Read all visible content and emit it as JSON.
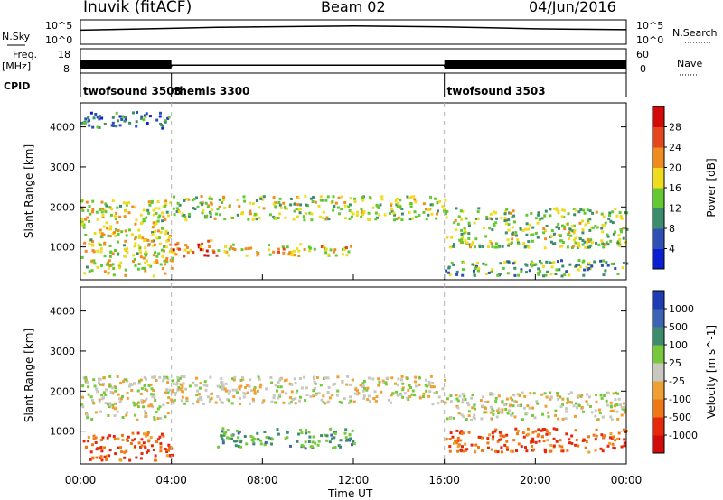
{
  "header": {
    "station": "Inuvik (fitACF)",
    "beam": "Beam 02",
    "date": "04/Jun/2016"
  },
  "side_labels": {
    "nsky": "N.Sky",
    "freq": "Freq.",
    "freq_unit": "[MHz]",
    "cpid": "CPID",
    "nsearch": "N.Search",
    "nave": "Nave"
  },
  "chart_data": [
    {
      "type": "line",
      "name": "noise-panel",
      "yticks_left": [
        "10^5",
        "10^0"
      ],
      "yticks_right": [
        "10^5",
        "10^0"
      ],
      "series": [
        {
          "name": "N.Sky",
          "x": [
            "00:00",
            "02:00",
            "04:00",
            "06:00",
            "08:00",
            "10:00",
            "12:00",
            "14:00",
            "16:00",
            "18:00",
            "20:00",
            "22:00",
            "24:00"
          ],
          "values": [
            2.8,
            3.0,
            3.2,
            3.4,
            3.5,
            3.6,
            3.7,
            3.6,
            3.5,
            3.3,
            3.1,
            3.0,
            2.9
          ]
        }
      ]
    },
    {
      "type": "line",
      "name": "frequency-nave-panel",
      "yticks_left": [
        "18",
        "8"
      ],
      "yticks_right": [
        "60",
        "0"
      ],
      "series": [
        {
          "name": "Freq.",
          "x": [
            "00:00",
            "04:00",
            "04:00",
            "16:00",
            "16:00",
            "24:00"
          ],
          "values": [
            10.5,
            10.5,
            11,
            11,
            10.5,
            10.5
          ]
        }
      ],
      "cpid_segments": [
        {
          "label": "twofsound 3503",
          "start": "00:00",
          "end": "04:00"
        },
        {
          "label": "themis 3300",
          "start": "04:00",
          "end": "16:00"
        },
        {
          "label": "twofsound 3503",
          "start": "16:00",
          "end": "24:00"
        }
      ]
    },
    {
      "type": "heatmap",
      "name": "power-panel",
      "ylabel": "Slant Range [km]",
      "yticks": [
        1000,
        2000,
        3000,
        4000
      ],
      "ylim": [
        180,
        4600
      ],
      "xlim_hours": [
        0,
        24
      ],
      "colorbar": {
        "label": "Power [dB]",
        "ticks": [
          "4",
          "8",
          "12",
          "16",
          "20",
          "24",
          "28"
        ],
        "range": [
          0,
          32
        ],
        "colors": [
          "#0a1ed2",
          "#2d50b4",
          "#3c8c6e",
          "#64c832",
          "#f0dc1e",
          "#f08c1e",
          "#e6461e",
          "#d20a0a"
        ]
      },
      "bands": [
        {
          "t0": 0.0,
          "t1": 4.0,
          "r0": 300,
          "r1": 2200,
          "level": 0.55
        },
        {
          "t0": 4.0,
          "t1": 6.0,
          "r0": 800,
          "r1": 1200,
          "level": 0.8
        },
        {
          "t0": 6.0,
          "t1": 12.0,
          "r0": 800,
          "r1": 1100,
          "level": 0.6
        },
        {
          "t0": 4.0,
          "t1": 16.0,
          "r0": 1700,
          "r1": 2300,
          "level": 0.5
        },
        {
          "t0": 16.0,
          "t1": 24.0,
          "r0": 1000,
          "r1": 2000,
          "level": 0.45
        },
        {
          "t0": 16.0,
          "t1": 24.0,
          "r0": 300,
          "r1": 700,
          "level": 0.35
        },
        {
          "t0": 0.0,
          "t1": 4.0,
          "r0": 4000,
          "r1": 4400,
          "level": 0.2
        }
      ]
    },
    {
      "type": "heatmap",
      "name": "velocity-panel",
      "xlabel": "Time UT",
      "ylabel": "Slant Range [km]",
      "yticks": [
        1000,
        2000,
        3000,
        4000
      ],
      "ylim": [
        180,
        4600
      ],
      "xticks": [
        "00:00",
        "04:00",
        "08:00",
        "12:00",
        "16:00",
        "20:00",
        "00:00"
      ],
      "colorbar": {
        "label": "Velocity [m s^-1]",
        "ticks": [
          "1000",
          "500",
          "100",
          "25",
          "-25",
          "-100",
          "-500",
          "-1000"
        ],
        "colors": [
          "#1e3cb4",
          "#3c64b4",
          "#3c8c6e",
          "#78c83c",
          "#c8c8c0",
          "#f0a032",
          "#f07814",
          "#e6280a",
          "#d20a0a"
        ]
      },
      "bands": [
        {
          "t0": 0.0,
          "t1": 4.0,
          "r0": 300,
          "r1": 1000,
          "level": 0.8
        },
        {
          "t0": 0.0,
          "t1": 4.0,
          "r0": 1300,
          "r1": 2400,
          "level": 0.5
        },
        {
          "t0": 4.0,
          "t1": 16.0,
          "r0": 1700,
          "r1": 2400,
          "level": 0.5
        },
        {
          "t0": 6.0,
          "t1": 12.0,
          "r0": 600,
          "r1": 1100,
          "level": 0.3
        },
        {
          "t0": 16.0,
          "t1": 24.0,
          "r0": 500,
          "r1": 1100,
          "level": 0.8
        },
        {
          "t0": 16.0,
          "t1": 24.0,
          "r0": 1300,
          "r1": 2000,
          "level": 0.5
        }
      ]
    }
  ],
  "colors": {
    "text": "#000000",
    "vline": "#b4b4b4",
    "background": "#ffffff"
  }
}
